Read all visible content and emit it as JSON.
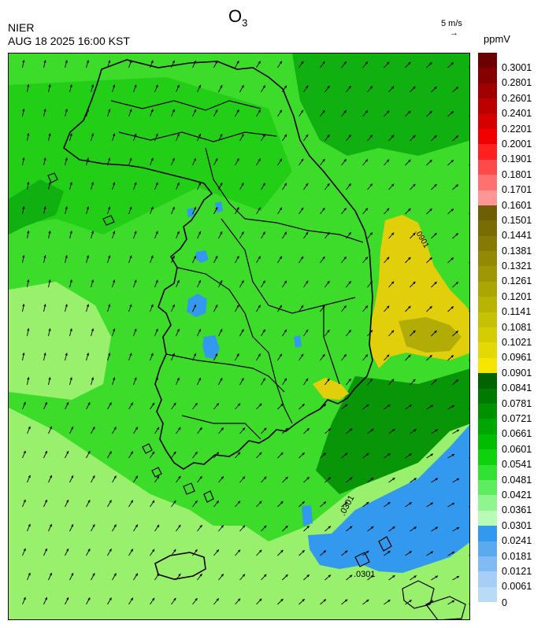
{
  "header": {
    "agency": "NIER",
    "datetime": "AUG 18 2025 16:00 KST",
    "pollutant": "O",
    "pollutant_sub": "3",
    "wind_scale_label": "5 m/s",
    "wind_scale_arrow": "→",
    "unit": "ppmV"
  },
  "colors": {
    "bg_low": "#99f06c",
    "bg_mid": "#3ddb2a",
    "bg_bright": "#22cf16",
    "bg_dark": "#0fb00f",
    "bg_darker": "#089608",
    "blue": "#3399ee",
    "yellow": "#e0cf0a",
    "olive": "#b1ac06",
    "coast": "#000000",
    "inner_border": "#cccccc",
    "arrow": "#000000"
  },
  "legend": {
    "levels": [
      {
        "label": "0.3001",
        "color": "#6a0000"
      },
      {
        "label": "0.2801",
        "color": "#850000"
      },
      {
        "label": "0.2601",
        "color": "#a00000"
      },
      {
        "label": "0.2401",
        "color": "#bb0000"
      },
      {
        "label": "0.2201",
        "color": "#d60000"
      },
      {
        "label": "0.2001",
        "color": "#f00000"
      },
      {
        "label": "0.1901",
        "color": "#ff2020"
      },
      {
        "label": "0.1801",
        "color": "#ff4a4a"
      },
      {
        "label": "0.1701",
        "color": "#ff7070"
      },
      {
        "label": "0.1601",
        "color": "#ff9696"
      },
      {
        "label": "0.1501",
        "color": "#6e5e06"
      },
      {
        "label": "0.1441",
        "color": "#7a6c05"
      },
      {
        "label": "0.1381",
        "color": "#867a04"
      },
      {
        "label": "0.1321",
        "color": "#938904"
      },
      {
        "label": "0.1261",
        "color": "#9f9804"
      },
      {
        "label": "0.1201",
        "color": "#aca604"
      },
      {
        "label": "0.1141",
        "color": "#b9b404"
      },
      {
        "label": "0.1081",
        "color": "#c6c104"
      },
      {
        "label": "0.1021",
        "color": "#d4cd04"
      },
      {
        "label": "0.0961",
        "color": "#e4d904"
      },
      {
        "label": "0.0901",
        "color": "#f5e500"
      },
      {
        "label": "0.0841",
        "color": "#006400"
      },
      {
        "label": "0.0781",
        "color": "#007a00"
      },
      {
        "label": "0.0721",
        "color": "#009100"
      },
      {
        "label": "0.0661",
        "color": "#00a700"
      },
      {
        "label": "0.0601",
        "color": "#00bd00"
      },
      {
        "label": "0.0541",
        "color": "#0fd20f"
      },
      {
        "label": "0.0481",
        "color": "#32e232"
      },
      {
        "label": "0.0421",
        "color": "#5eed5e"
      },
      {
        "label": "0.0361",
        "color": "#8ff58f"
      },
      {
        "label": "0.0301",
        "color": "#b8fab8"
      },
      {
        "label": "0.0241",
        "color": "#3399ee"
      },
      {
        "label": "0.0181",
        "color": "#5aaaf0"
      },
      {
        "label": "0.0121",
        "color": "#80bcf3"
      },
      {
        "label": "0.0061",
        "color": "#a6cef6"
      },
      {
        "label": "",
        "color": "#b8dcf8"
      }
    ],
    "zero_label": "0"
  },
  "contour_labels": [
    ".0301",
    ".0301",
    ".0901"
  ]
}
